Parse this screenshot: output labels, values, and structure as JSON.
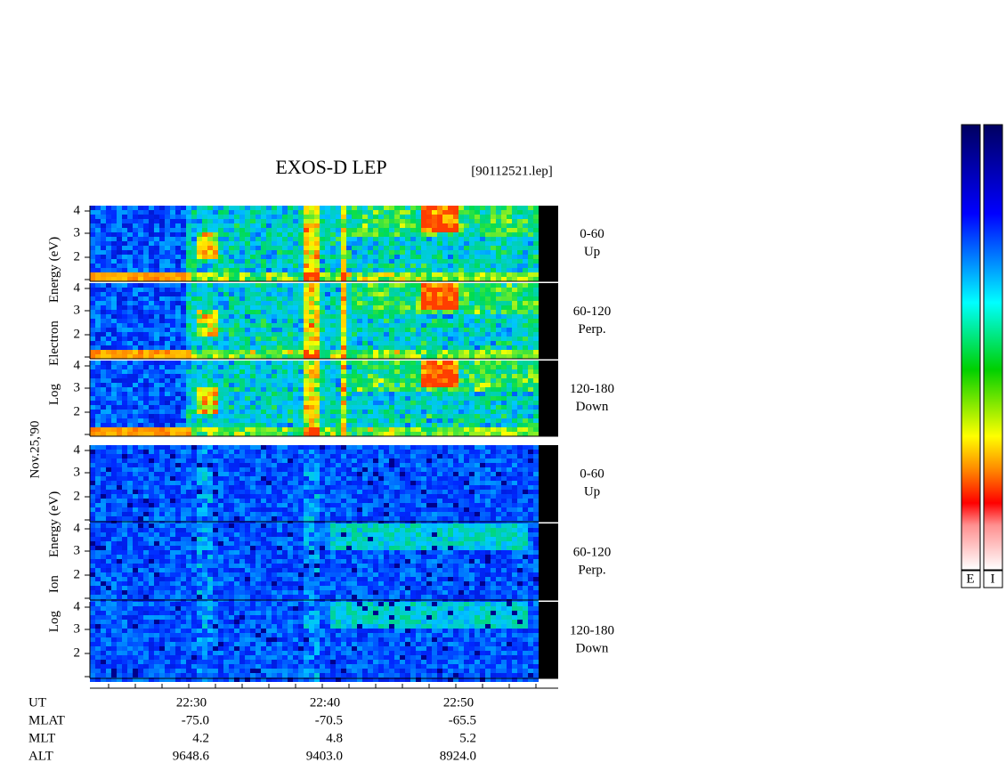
{
  "title": "EXOS-D LEP",
  "file": "[90112521.lep]",
  "date": "Nov.25,'90",
  "electron": {
    "axis_label": [
      "Log",
      "Electron",
      "Energy (eV)"
    ],
    "yticks": [
      "4",
      "3",
      "2"
    ],
    "panels": [
      {
        "range": "0-60",
        "direction": "Up"
      },
      {
        "range": "60-120",
        "direction": "Perp."
      },
      {
        "range": "120-180",
        "direction": "Down"
      }
    ]
  },
  "ion": {
    "axis_label": [
      "Log",
      "Ion",
      "Energy (eV)"
    ],
    "yticks": [
      "4",
      "3",
      "2"
    ],
    "panels": [
      {
        "range": "0-60",
        "direction": "Up"
      },
      {
        "range": "60-120",
        "direction": "Perp."
      },
      {
        "range": "120-180",
        "direction": "Down"
      }
    ]
  },
  "time_axis": {
    "rows": [
      {
        "label": "UT",
        "values": [
          "22:30",
          "22:40",
          "22:50"
        ]
      },
      {
        "label": "MLAT",
        "values": [
          "-75.0",
          "-70.5",
          "-65.5"
        ]
      },
      {
        "label": "MLT",
        "values": [
          "4.2",
          "4.8",
          "5.2"
        ]
      },
      {
        "label": "ALT",
        "values": [
          "9648.6",
          "9403.0",
          "8924.0"
        ]
      }
    ]
  },
  "colorbars": [
    "E",
    "I"
  ]
}
